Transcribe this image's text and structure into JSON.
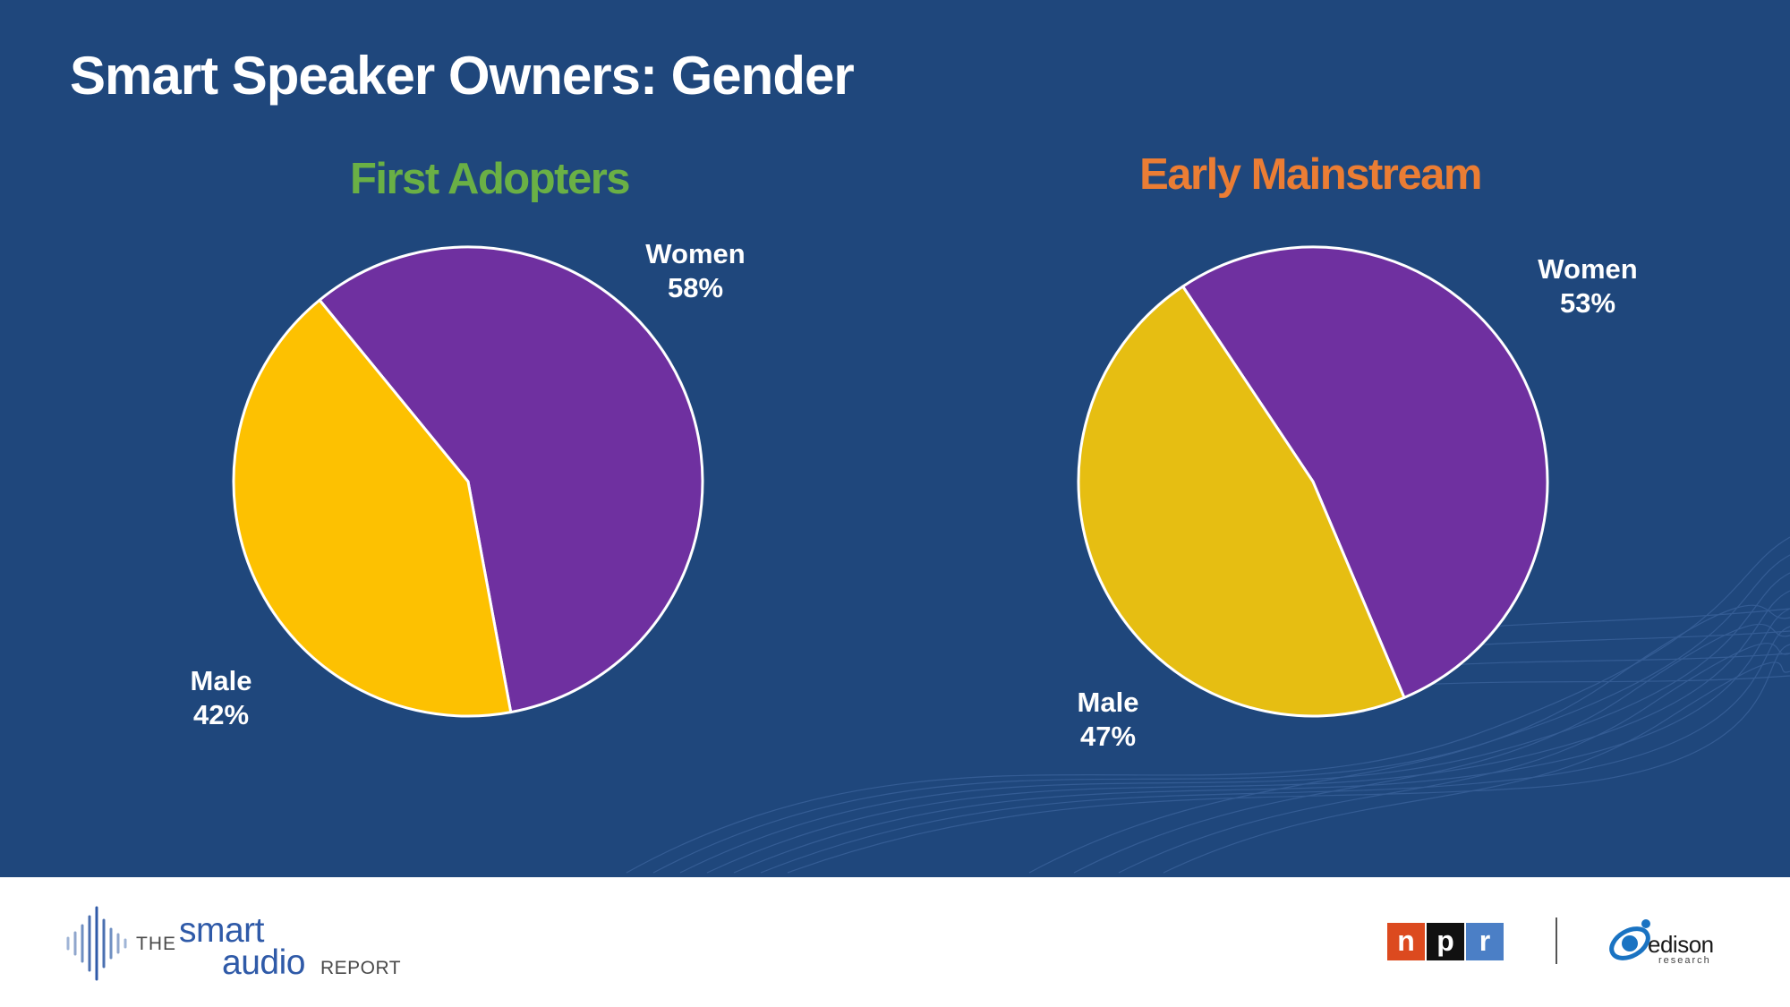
{
  "title": "Smart Speaker Owners: Gender",
  "colors": {
    "background": "#1f477c",
    "women": "#6f30a0",
    "male_first": "#fdc101",
    "male_early": "#e6be12",
    "first_adopters_title": "#6ab045",
    "early_mainstream_title": "#eb7d34",
    "npr_red": "#dc4a1f",
    "npr_black": "#111111",
    "npr_blue": "#4b7fc6",
    "edison_blue": "#1a73c2"
  },
  "chart_data": [
    {
      "type": "pie",
      "title": "First Adopters",
      "categories": [
        "Women",
        "Male"
      ],
      "values": [
        58,
        42
      ],
      "labels": {
        "women": {
          "name": "Women",
          "value": "58%"
        },
        "male": {
          "name": "Male",
          "value": "42%"
        }
      }
    },
    {
      "type": "pie",
      "title": "Early Mainstream",
      "categories": [
        "Women",
        "Male"
      ],
      "values": [
        53,
        47
      ],
      "labels": {
        "women": {
          "name": "Women",
          "value": "53%"
        },
        "male": {
          "name": "Male",
          "value": "47%"
        }
      }
    }
  ],
  "footer": {
    "brand": {
      "the": "THE",
      "smart": "smart",
      "audio": "audio",
      "report": "REPORT"
    },
    "npr": [
      "n",
      "p",
      "r"
    ],
    "edison": {
      "name": "edison",
      "sub": "research"
    }
  }
}
